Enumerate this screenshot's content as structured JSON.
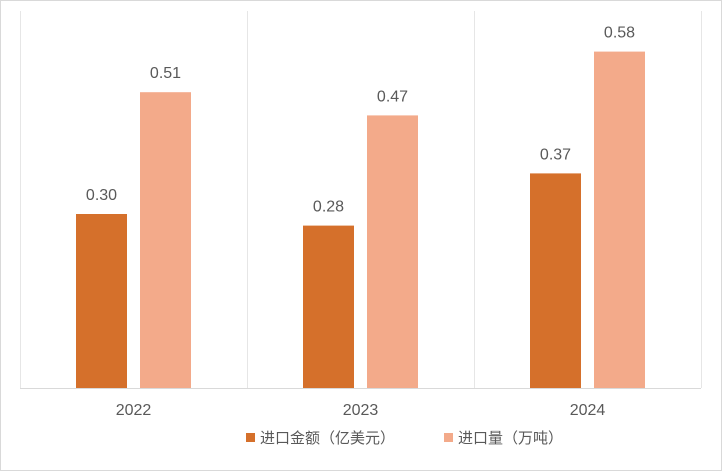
{
  "chart_data": {
    "type": "bar",
    "categories": [
      "2022",
      "2023",
      "2024"
    ],
    "series": [
      {
        "name": "进口金额（亿美元）",
        "values": [
          0.3,
          0.28,
          0.37
        ],
        "labels": [
          "0.30",
          "0.28",
          "0.37"
        ],
        "color": "#D5702B"
      },
      {
        "name": "进口量（万吨）",
        "values": [
          0.51,
          0.47,
          0.58
        ],
        "labels": [
          "0.51",
          "0.47",
          "0.58"
        ],
        "color": "#F3AA8A"
      }
    ],
    "title": "",
    "xlabel": "",
    "ylabel": "",
    "ylim": [
      0,
      0.65
    ],
    "grid": "vertical category separators",
    "legend": "bottom-center"
  }
}
